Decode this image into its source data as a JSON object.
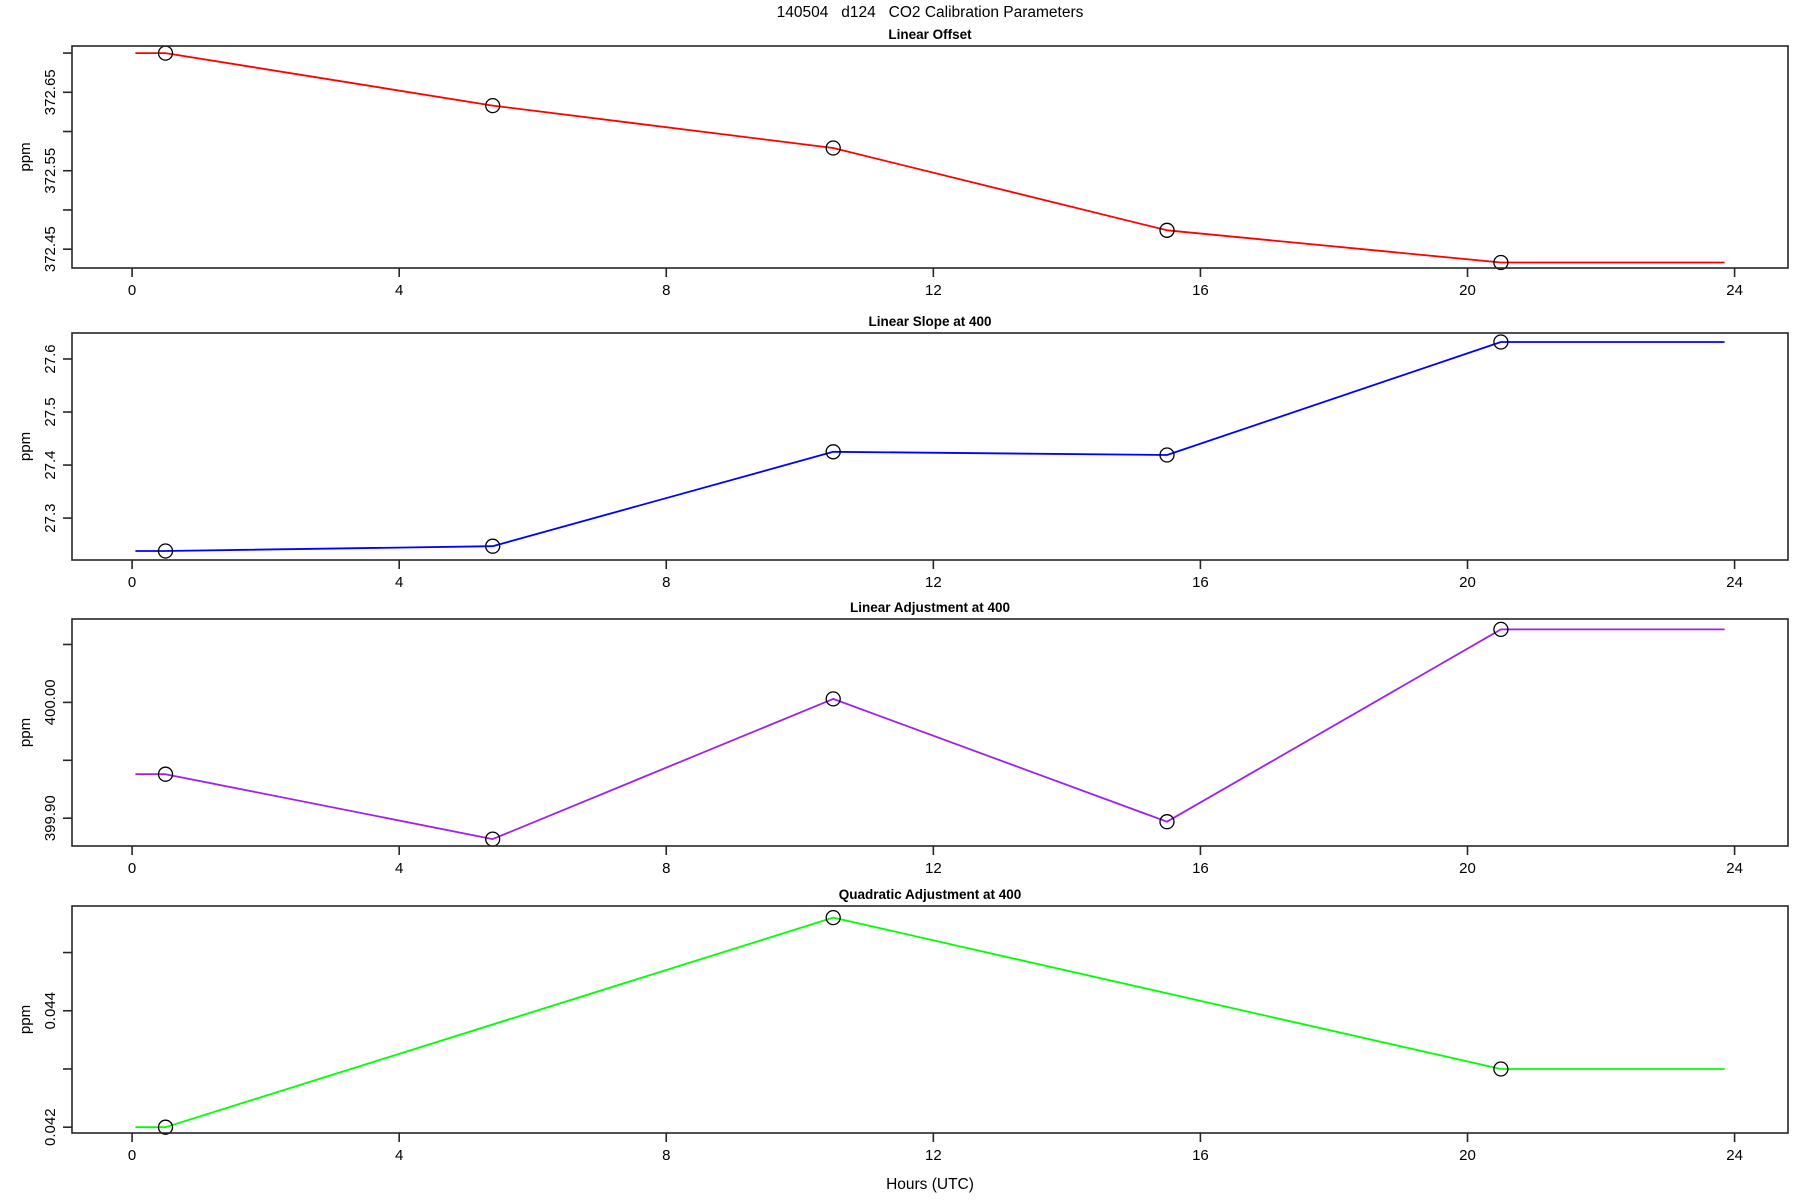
{
  "main_title": "140504   d124   CO2 Calibration Parameters",
  "xlabel": "Hours (UTC)",
  "axis_color": "#262626",
  "marker_color": "#000000",
  "chart_data": [
    {
      "type": "line",
      "title": "Linear Offset",
      "ylabel": "ppm",
      "color": "#FF0000",
      "xlim": [
        -0.9,
        24.8
      ],
      "ylim": [
        372.426,
        372.709
      ],
      "x_ticks": [
        0,
        4,
        8,
        12,
        16,
        20,
        24
      ],
      "x_tick_labels": [
        "0",
        "4",
        "8",
        "12",
        "16",
        "20",
        "24"
      ],
      "y_ticks": [
        372.45,
        372.5,
        372.55,
        372.6,
        372.65,
        372.7
      ],
      "y_tick_labels": [
        "372.45",
        "",
        "372.55",
        "",
        "372.65",
        ""
      ],
      "x": [
        0.05,
        0.5,
        5.4,
        10.5,
        15.5,
        20.5,
        23.85
      ],
      "y": [
        372.7,
        372.7,
        372.633,
        372.579,
        372.474,
        372.433,
        372.433
      ],
      "marker_indices": [
        1,
        2,
        3,
        4,
        5
      ]
    },
    {
      "type": "line",
      "title": "Linear Slope at 400",
      "ylabel": "ppm",
      "color": "#0000FF",
      "xlim": [
        -0.9,
        24.8
      ],
      "ylim": [
        27.221,
        27.649
      ],
      "x_ticks": [
        0,
        4,
        8,
        12,
        16,
        20,
        24
      ],
      "x_tick_labels": [
        "0",
        "4",
        "8",
        "12",
        "16",
        "20",
        "24"
      ],
      "y_ticks": [
        27.3,
        27.4,
        27.5,
        27.6
      ],
      "y_tick_labels": [
        "27.3",
        "27.4",
        "27.5",
        "27.6"
      ],
      "x": [
        0.05,
        0.5,
        5.4,
        10.5,
        15.5,
        20.5,
        23.85
      ],
      "y": [
        27.238,
        27.238,
        27.247,
        27.425,
        27.419,
        27.632,
        27.632
      ],
      "marker_indices": [
        1,
        2,
        3,
        4,
        5
      ]
    },
    {
      "type": "line",
      "title": "Linear Adjustment at 400",
      "ylabel": "ppm",
      "color": "#A020F0",
      "xlim": [
        -0.9,
        24.8
      ],
      "ylim": [
        399.876,
        400.072
      ],
      "x_ticks": [
        0,
        4,
        8,
        12,
        16,
        20,
        24
      ],
      "x_tick_labels": [
        "0",
        "4",
        "8",
        "12",
        "16",
        "20",
        "24"
      ],
      "y_ticks": [
        399.9,
        399.95,
        400.0,
        400.05
      ],
      "y_tick_labels": [
        "399.90",
        "",
        "400.00",
        ""
      ],
      "x": [
        0.05,
        0.5,
        5.4,
        10.5,
        15.5,
        20.5,
        23.85
      ],
      "y": [
        399.938,
        399.938,
        399.882,
        400.003,
        399.897,
        400.063,
        400.063
      ],
      "marker_indices": [
        1,
        2,
        3,
        4,
        5
      ]
    },
    {
      "type": "line",
      "title": "Quadratic Adjustment at 400",
      "ylabel": "ppm",
      "color": "#00FF00",
      "xlim": [
        -0.9,
        24.8
      ],
      "ylim": [
        0.0419,
        0.0458
      ],
      "x_ticks": [
        0,
        4,
        8,
        12,
        16,
        20,
        24
      ],
      "x_tick_labels": [
        "0",
        "4",
        "8",
        "12",
        "16",
        "20",
        "24"
      ],
      "y_ticks": [
        0.042,
        0.043,
        0.044,
        0.045
      ],
      "y_tick_labels": [
        "0.042",
        "",
        "0.044",
        ""
      ],
      "x": [
        0.05,
        0.5,
        10.5,
        20.5,
        23.85
      ],
      "y": [
        0.042,
        0.042,
        0.0456,
        0.043,
        0.043
      ],
      "marker_indices": [
        1,
        2,
        3
      ]
    }
  ]
}
